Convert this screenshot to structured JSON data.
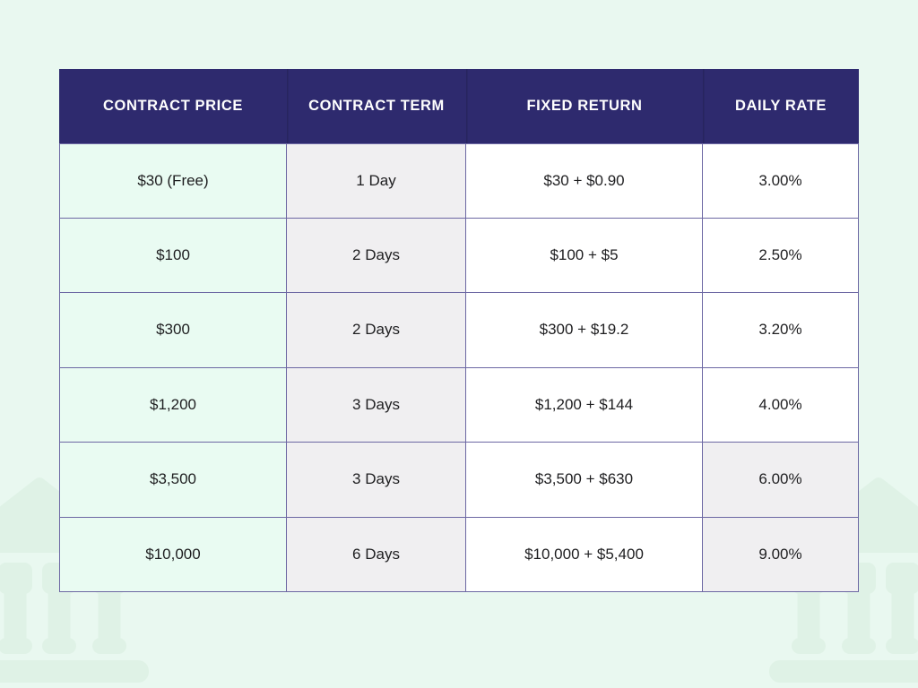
{
  "background": {
    "page_color": "#e9f8f0",
    "decoration_color": "#dff2e6",
    "decoration": "bank-building silhouettes in bottom corners"
  },
  "table": {
    "header_bg": "#2e2a6e",
    "header_text_color": "#ffffff",
    "border_color": "#6c67a3",
    "price_column_bg": "#e9fbf2",
    "term_column_bg": "#f0eff1",
    "column_keys": [
      "contract-price",
      "contract-term",
      "fixed-return",
      "daily-rate"
    ],
    "columns": [
      {
        "label": "CONTRACT PRICE"
      },
      {
        "label": "CONTRACT TERM"
      },
      {
        "label": "FIXED RETURN"
      },
      {
        "label": "DAILY RATE"
      }
    ],
    "rows": [
      {
        "cells": [
          "$30 (Free)",
          "1 Day",
          "$30 + $0.90",
          "3.00%"
        ],
        "daily_rate_shaded": false
      },
      {
        "cells": [
          "$100",
          "2 Days",
          "$100 + $5",
          "2.50%"
        ],
        "daily_rate_shaded": false
      },
      {
        "cells": [
          "$300",
          "2 Days",
          "$300 + $19.2",
          "3.20%"
        ],
        "daily_rate_shaded": false
      },
      {
        "cells": [
          "$1,200",
          "3 Days",
          "$1,200 + $144",
          "4.00%"
        ],
        "daily_rate_shaded": false
      },
      {
        "cells": [
          "$3,500",
          "3 Days",
          "$3,500 + $630",
          "6.00%"
        ],
        "daily_rate_shaded": true
      },
      {
        "cells": [
          "$10,000",
          "6 Days",
          "$10,000 + $5,400",
          "9.00%"
        ],
        "daily_rate_shaded": true
      }
    ]
  },
  "chart_data": {
    "type": "table",
    "title": "",
    "columns": [
      "CONTRACT PRICE",
      "CONTRACT TERM",
      "FIXED RETURN",
      "DAILY RATE"
    ],
    "rows": [
      [
        "$30 (Free)",
        "1 Day",
        "$30 + $0.90",
        "3.00%"
      ],
      [
        "$100",
        "2 Days",
        "$100 + $5",
        "2.50%"
      ],
      [
        "$300",
        "2 Days",
        "$300 + $19.2",
        "3.20%"
      ],
      [
        "$1,200",
        "3 Days",
        "$1,200 + $144",
        "4.00%"
      ],
      [
        "$3,500",
        "3 Days",
        "$3,500 + $630",
        "6.00%"
      ],
      [
        "$10,000",
        "6 Days",
        "$10,000 + $5,400",
        "9.00%"
      ]
    ]
  }
}
